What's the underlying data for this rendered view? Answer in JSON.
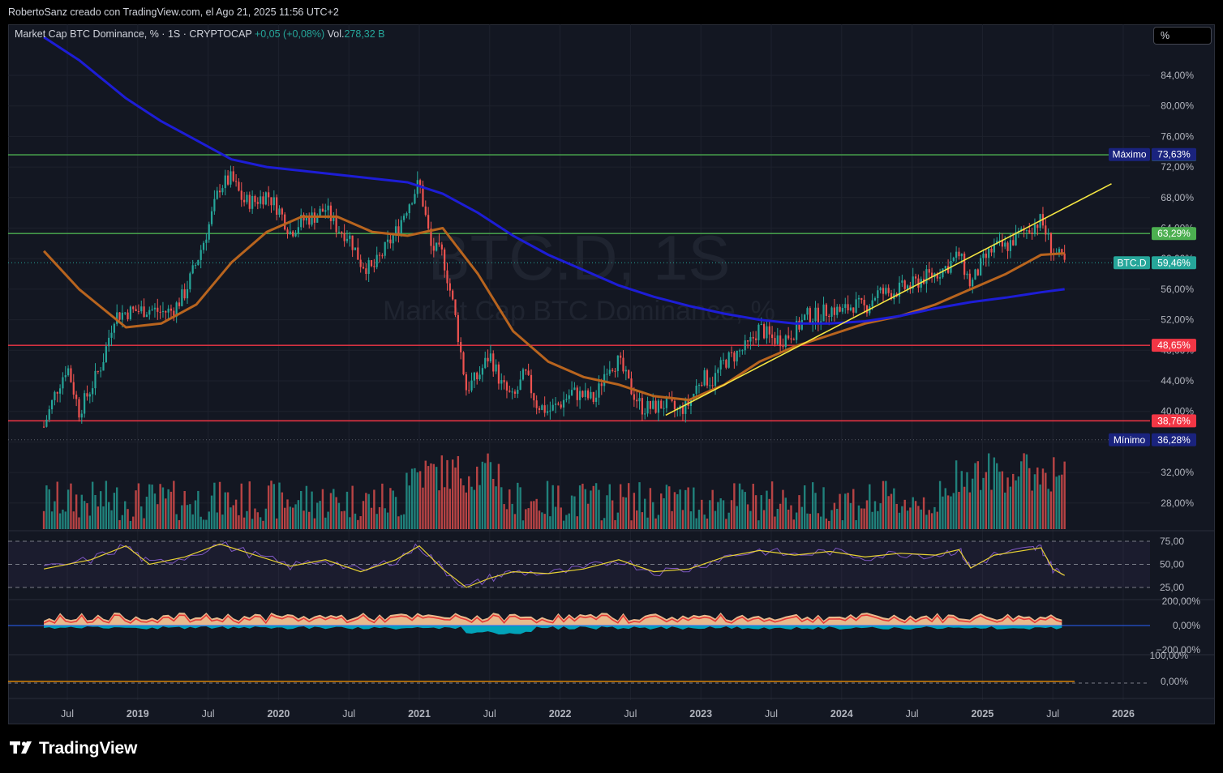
{
  "header": {
    "credit": "RobertoSanz creado con TradingView.com, el Ago 21, 2025 11:56 UTC+2"
  },
  "legend": {
    "title": "Market Cap BTC Dominance, % · 1S · CRYPTOCAP",
    "change": "+0,05 (+0,08%)",
    "vol_label": "Vol.",
    "vol_value": "278,32 B"
  },
  "scale_button": "%",
  "watermark": {
    "symbol": "BTC.D, 1S",
    "name": "Market Cap BTC Dominance, %"
  },
  "footer": {
    "brand": "TradingView"
  },
  "colors": {
    "background": "#131722",
    "up": "#26a69a",
    "down": "#ef5350",
    "green_level": "#4caf50",
    "red_level": "#f23645",
    "sma_orange": "#b8641e",
    "sma_blue": "#1d1dd6",
    "trendline": "#f5e642",
    "rsi": "#7e57c2",
    "rsi_ma": "#e8d233"
  },
  "chart_data": {
    "type": "candlestick",
    "symbol": "BTC.D",
    "timeframe": "1S",
    "ylim": [
      24,
      90
    ],
    "y_ticks": [
      "84,00%",
      "80,00%",
      "76,00%",
      "72,00%",
      "68,00%",
      "64,00%",
      "60,00%",
      "56,00%",
      "52,00%",
      "48,00%",
      "44,00%",
      "40,00%",
      "36,00%",
      "32,00%",
      "28,00%"
    ],
    "x_ticks": [
      "Jul",
      "2019",
      "Jul",
      "2020",
      "Jul",
      "2021",
      "Jul",
      "2022",
      "Jul",
      "2023",
      "Jul",
      "2024",
      "Jul",
      "2025",
      "Jul",
      "2026"
    ],
    "price_path": [
      [
        "2018-05",
        38.0
      ],
      [
        "2018-06",
        42.5
      ],
      [
        "2018-07",
        46.0
      ],
      [
        "2018-08",
        40.0
      ],
      [
        "2018-09",
        43.0
      ],
      [
        "2018-10",
        46.5
      ],
      [
        "2018-11",
        52.5
      ],
      [
        "2018-12",
        53.0
      ],
      [
        "2019-01",
        53.2
      ],
      [
        "2019-02",
        53.4
      ],
      [
        "2019-03",
        53.0
      ],
      [
        "2019-04",
        53.2
      ],
      [
        "2019-05",
        55.5
      ],
      [
        "2019-06",
        59.5
      ],
      [
        "2019-07",
        64.0
      ],
      [
        "2019-08",
        69.5
      ],
      [
        "2019-09",
        70.5
      ],
      [
        "2019-10",
        67.5
      ],
      [
        "2019-11",
        67.5
      ],
      [
        "2019-12",
        68.5
      ],
      [
        "2020-01",
        66.5
      ],
      [
        "2020-02",
        63.5
      ],
      [
        "2020-03",
        65.0
      ],
      [
        "2020-04",
        65.5
      ],
      [
        "2020-05",
        66.5
      ],
      [
        "2020-06",
        64.0
      ],
      [
        "2020-07",
        63.0
      ],
      [
        "2020-08",
        59.5
      ],
      [
        "2020-09",
        58.5
      ],
      [
        "2020-10",
        61.0
      ],
      [
        "2020-11",
        63.5
      ],
      [
        "2020-12",
        67.0
      ],
      [
        "2021-01",
        70.0
      ],
      [
        "2021-02",
        61.5
      ],
      [
        "2021-03",
        60.5
      ],
      [
        "2021-04",
        53.0
      ],
      [
        "2021-05",
        43.0
      ],
      [
        "2021-06",
        44.5
      ],
      [
        "2021-07",
        47.5
      ],
      [
        "2021-08",
        43.5
      ],
      [
        "2021-09",
        41.5
      ],
      [
        "2021-10",
        45.0
      ],
      [
        "2021-11",
        41.0
      ],
      [
        "2021-12",
        40.0
      ],
      [
        "2022-01",
        41.0
      ],
      [
        "2022-02",
        42.5
      ],
      [
        "2022-03",
        42.0
      ],
      [
        "2022-04",
        41.5
      ],
      [
        "2022-05",
        46.0
      ],
      [
        "2022-06",
        46.5
      ],
      [
        "2022-07",
        43.0
      ],
      [
        "2022-08",
        40.5
      ],
      [
        "2022-09",
        40.5
      ],
      [
        "2022-10",
        41.0
      ],
      [
        "2022-11",
        40.0
      ],
      [
        "2022-12",
        41.0
      ],
      [
        "2023-01",
        44.5
      ],
      [
        "2023-02",
        44.0
      ],
      [
        "2023-03",
        46.5
      ],
      [
        "2023-04",
        47.5
      ],
      [
        "2023-05",
        48.5
      ],
      [
        "2023-06",
        51.0
      ],
      [
        "2023-07",
        49.5
      ],
      [
        "2023-08",
        49.5
      ],
      [
        "2023-09",
        50.5
      ],
      [
        "2023-10",
        52.5
      ],
      [
        "2023-11",
        52.5
      ],
      [
        "2023-12",
        53.5
      ],
      [
        "2024-01",
        53.0
      ],
      [
        "2024-02",
        54.0
      ],
      [
        "2024-03",
        53.5
      ],
      [
        "2024-04",
        55.5
      ],
      [
        "2024-05",
        55.5
      ],
      [
        "2024-06",
        56.0
      ],
      [
        "2024-07",
        56.5
      ],
      [
        "2024-08",
        57.5
      ],
      [
        "2024-09",
        58.0
      ],
      [
        "2024-10",
        59.0
      ],
      [
        "2024-11",
        60.5
      ],
      [
        "2024-12",
        56.5
      ],
      [
        "2025-01",
        59.5
      ],
      [
        "2025-02",
        61.5
      ],
      [
        "2025-03",
        61.5
      ],
      [
        "2025-04",
        63.0
      ],
      [
        "2025-05",
        64.0
      ],
      [
        "2025-06",
        65.0
      ],
      [
        "2025-07",
        61.0
      ],
      [
        "2025-08",
        59.46
      ]
    ],
    "sma_orange": [
      [
        "2018-05",
        61.0
      ],
      [
        "2018-08",
        56.0
      ],
      [
        "2018-12",
        51.0
      ],
      [
        "2019-03",
        51.5
      ],
      [
        "2019-06",
        54.0
      ],
      [
        "2019-09",
        59.5
      ],
      [
        "2019-12",
        63.5
      ],
      [
        "2020-03",
        65.5
      ],
      [
        "2020-06",
        65.5
      ],
      [
        "2020-09",
        63.5
      ],
      [
        "2020-12",
        63.0
      ],
      [
        "2021-03",
        64.0
      ],
      [
        "2021-06",
        58.0
      ],
      [
        "2021-09",
        50.5
      ],
      [
        "2021-12",
        46.5
      ],
      [
        "2022-03",
        44.5
      ],
      [
        "2022-06",
        43.5
      ],
      [
        "2022-09",
        42.0
      ],
      [
        "2022-12",
        41.5
      ],
      [
        "2023-03",
        43.5
      ],
      [
        "2023-06",
        46.5
      ],
      [
        "2023-09",
        48.5
      ],
      [
        "2023-12",
        50.0
      ],
      [
        "2024-03",
        51.5
      ],
      [
        "2024-06",
        52.5
      ],
      [
        "2024-09",
        54.0
      ],
      [
        "2024-12",
        56.0
      ],
      [
        "2025-03",
        58.0
      ],
      [
        "2025-06",
        60.5
      ],
      [
        "2025-08",
        60.7
      ]
    ],
    "sma_blue": [
      [
        "2018-05",
        89.0
      ],
      [
        "2018-08",
        86.0
      ],
      [
        "2018-12",
        81.0
      ],
      [
        "2019-03",
        78.0
      ],
      [
        "2019-06",
        75.5
      ],
      [
        "2019-09",
        73.0
      ],
      [
        "2019-12",
        72.0
      ],
      [
        "2020-03",
        71.5
      ],
      [
        "2020-06",
        71.0
      ],
      [
        "2020-09",
        70.5
      ],
      [
        "2020-12",
        70.0
      ],
      [
        "2021-03",
        68.5
      ],
      [
        "2021-06",
        66.0
      ],
      [
        "2021-09",
        63.0
      ],
      [
        "2021-12",
        60.5
      ],
      [
        "2022-03",
        58.5
      ],
      [
        "2022-06",
        56.5
      ],
      [
        "2022-09",
        55.0
      ],
      [
        "2022-12",
        53.8
      ],
      [
        "2023-03",
        52.8
      ],
      [
        "2023-06",
        52.0
      ],
      [
        "2023-09",
        51.5
      ],
      [
        "2023-12",
        51.5
      ],
      [
        "2024-03",
        51.8
      ],
      [
        "2024-06",
        52.5
      ],
      [
        "2024-09",
        53.5
      ],
      [
        "2024-12",
        54.3
      ],
      [
        "2025-03",
        54.9
      ],
      [
        "2025-06",
        55.6
      ],
      [
        "2025-08",
        56.0
      ]
    ],
    "trendline": [
      [
        "2022-10",
        39.5
      ],
      [
        "2025-12",
        69.8
      ]
    ],
    "levels": [
      {
        "value": 73.6,
        "label": "73,60%",
        "color": "#4caf50"
      },
      {
        "value": 63.29,
        "label": "63,29%",
        "color": "#4caf50"
      },
      {
        "value": 48.65,
        "label": "48,65%",
        "color": "#f23645"
      },
      {
        "value": 38.76,
        "label": "38,76%",
        "color": "#f23645"
      }
    ],
    "markers": [
      {
        "name": "Máximo",
        "label": "Máximo",
        "value": "73,63%",
        "y": 73.63
      },
      {
        "name": "Mínimo",
        "label": "Mínimo",
        "value": "36,28%",
        "y": 36.28
      }
    ],
    "last_price": {
      "symbol": "BTC.D",
      "label": "59,46%",
      "value": 59.46
    },
    "rsi": {
      "levels": [
        "75,00",
        "50,00",
        "25,00"
      ],
      "values": [
        [
          "2018-05",
          45
        ],
        [
          "2018-09",
          55
        ],
        [
          "2018-12",
          70
        ],
        [
          "2019-02",
          50
        ],
        [
          "2019-05",
          58
        ],
        [
          "2019-08",
          72
        ],
        [
          "2019-11",
          60
        ],
        [
          "2020-02",
          48
        ],
        [
          "2020-05",
          55
        ],
        [
          "2020-08",
          42
        ],
        [
          "2020-11",
          55
        ],
        [
          "2021-01",
          70
        ],
        [
          "2021-03",
          45
        ],
        [
          "2021-05",
          25
        ],
        [
          "2021-07",
          35
        ],
        [
          "2021-09",
          42
        ],
        [
          "2021-12",
          40
        ],
        [
          "2022-03",
          45
        ],
        [
          "2022-06",
          55
        ],
        [
          "2022-09",
          42
        ],
        [
          "2022-12",
          45
        ],
        [
          "2023-03",
          58
        ],
        [
          "2023-06",
          65
        ],
        [
          "2023-09",
          60
        ],
        [
          "2023-12",
          64
        ],
        [
          "2024-03",
          58
        ],
        [
          "2024-06",
          62
        ],
        [
          "2024-09",
          60
        ],
        [
          "2024-11",
          66
        ],
        [
          "2024-12",
          46
        ],
        [
          "2025-02",
          60
        ],
        [
          "2025-05",
          66
        ],
        [
          "2025-06",
          68
        ],
        [
          "2025-07",
          45
        ],
        [
          "2025-08",
          38
        ]
      ]
    },
    "oscillator": {
      "levels": [
        "200,00%",
        "0,00%",
        "−200,00%"
      ]
    },
    "bottom_pane": {
      "levels": [
        "100,00%",
        "0,00%"
      ]
    }
  }
}
